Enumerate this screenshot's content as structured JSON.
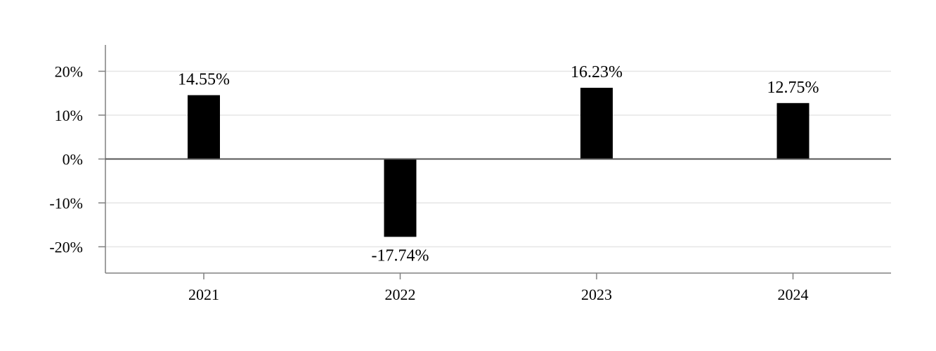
{
  "chart_data": {
    "type": "bar",
    "categories": [
      "2021",
      "2022",
      "2023",
      "2024"
    ],
    "values": [
      14.55,
      -17.74,
      16.23,
      12.75
    ],
    "data_labels": [
      "14.55%",
      "-17.74%",
      "16.23%",
      "12.75%"
    ],
    "title": "",
    "xlabel": "",
    "ylabel": "",
    "ylim": [
      -26,
      26
    ],
    "yticks": [
      20,
      10,
      0,
      -10,
      -20
    ],
    "ytick_labels": [
      "20%",
      "10%",
      "0%",
      "-10%",
      "-20%"
    ],
    "grid": true,
    "legend": "none",
    "colors": {
      "bar": "#000000",
      "grid": "#e6e6e6",
      "axis": "#808080",
      "zero_line": "#555555"
    }
  }
}
